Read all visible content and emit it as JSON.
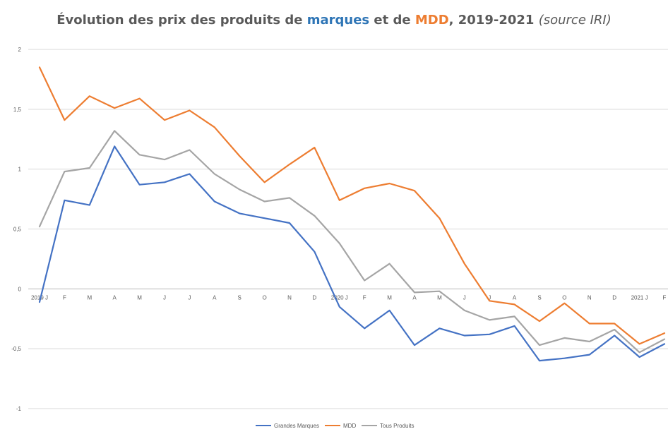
{
  "chart_data": {
    "type": "line",
    "title": {
      "part1": "Évolution des prix des produits de ",
      "brand": "marques",
      "part2": " et de ",
      "mdd": "MDD",
      "part3": ", 2019-2021 ",
      "source": "(source IRI)"
    },
    "colors": {
      "brand_word": "#2e75b6",
      "mdd_word": "#ed7d31",
      "title": "#595959"
    },
    "categories": [
      "2019 J",
      "F",
      "M",
      "A",
      "M",
      "J",
      "J",
      "A",
      "S",
      "O",
      "N",
      "D",
      "2020 J",
      "F",
      "M",
      "A",
      "M",
      "J",
      "J",
      "A",
      "S",
      "O",
      "N",
      "D",
      "2021 J",
      "F"
    ],
    "ylim": [
      -1,
      2
    ],
    "yticks": [
      -1,
      -0.5,
      0,
      0.5,
      1,
      1.5,
      2
    ],
    "ytick_labels": [
      "-1",
      "-0,5",
      "0",
      "0,5",
      "1",
      "1,5",
      "2"
    ],
    "grid": true,
    "legend_position": "bottom",
    "series": [
      {
        "name": "Grandes Marques",
        "color": "#4472c4",
        "values": [
          -0.11,
          0.74,
          0.7,
          1.19,
          0.87,
          0.89,
          0.96,
          0.73,
          0.63,
          0.59,
          0.55,
          0.31,
          -0.15,
          -0.33,
          -0.18,
          -0.47,
          -0.33,
          -0.39,
          -0.38,
          -0.31,
          -0.6,
          -0.58,
          -0.55,
          -0.39,
          -0.57,
          -0.46
        ]
      },
      {
        "name": "MDD",
        "color": "#ed7d31",
        "values": [
          1.85,
          1.41,
          1.61,
          1.51,
          1.59,
          1.41,
          1.49,
          1.35,
          1.11,
          0.89,
          1.04,
          1.18,
          0.74,
          0.84,
          0.88,
          0.82,
          0.59,
          0.21,
          -0.1,
          -0.13,
          -0.27,
          -0.12,
          -0.29,
          -0.29,
          -0.46,
          -0.37
        ]
      },
      {
        "name": "Tous Produits",
        "color": "#a5a5a5",
        "values": [
          0.52,
          0.98,
          1.01,
          1.32,
          1.12,
          1.08,
          1.16,
          0.96,
          0.83,
          0.73,
          0.76,
          0.61,
          0.38,
          0.07,
          0.21,
          -0.03,
          -0.02,
          -0.18,
          -0.26,
          -0.23,
          -0.47,
          -0.41,
          -0.44,
          -0.34,
          -0.53,
          -0.42
        ]
      }
    ]
  }
}
